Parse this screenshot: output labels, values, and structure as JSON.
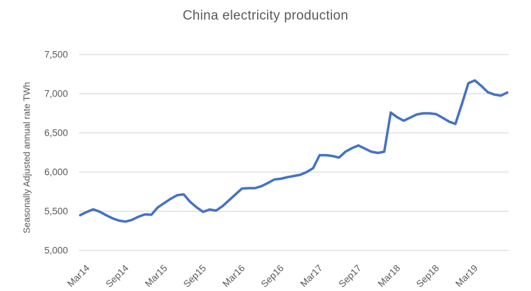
{
  "title": "China electricity production",
  "y_axis_title": "Seasonally Adjusted annual rate TWh",
  "colors": {
    "line": "#4472C4",
    "grid": "#D9D9D9",
    "text": "#595959",
    "background": "#FFFFFF"
  },
  "chart_data": {
    "type": "line",
    "title": "China electricity production",
    "xlabel": "",
    "ylabel": "Seasonally Adjusted annual rate TWh",
    "ylim": [
      5000,
      7500
    ],
    "ytick_step": 500,
    "ytick_labels": [
      "5,000",
      "5,500",
      "6,000",
      "6,500",
      "7,000",
      "7,500"
    ],
    "grid": true,
    "legend_position": "none",
    "x_tick_labels": [
      {
        "label": "Mar14",
        "index": 1
      },
      {
        "label": "Sep14",
        "index": 7
      },
      {
        "label": "Mar15",
        "index": 13
      },
      {
        "label": "Sep15",
        "index": 19
      },
      {
        "label": "Mar16",
        "index": 25
      },
      {
        "label": "Sep16",
        "index": 31
      },
      {
        "label": "Mar17",
        "index": 37
      },
      {
        "label": "Sep17",
        "index": 43
      },
      {
        "label": "Mar18",
        "index": 49
      },
      {
        "label": "Sep18",
        "index": 55
      },
      {
        "label": "Mar19",
        "index": 61
      }
    ],
    "series": [
      {
        "name": "Seasonally adjusted annual rate",
        "color": "#4472C4",
        "values": [
          5450,
          5490,
          5525,
          5495,
          5450,
          5410,
          5380,
          5368,
          5390,
          5430,
          5460,
          5455,
          5550,
          5605,
          5660,
          5705,
          5715,
          5620,
          5550,
          5492,
          5522,
          5508,
          5565,
          5640,
          5715,
          5790,
          5795,
          5795,
          5820,
          5860,
          5905,
          5915,
          5935,
          5950,
          5965,
          6000,
          6050,
          6215,
          6215,
          6205,
          6185,
          6260,
          6305,
          6340,
          6300,
          6260,
          6245,
          6260,
          6760,
          6700,
          6655,
          6695,
          6735,
          6750,
          6750,
          6740,
          6695,
          6645,
          6615,
          6870,
          7135,
          7170,
          7100,
          7020,
          6990,
          6975,
          7015
        ]
      }
    ]
  }
}
